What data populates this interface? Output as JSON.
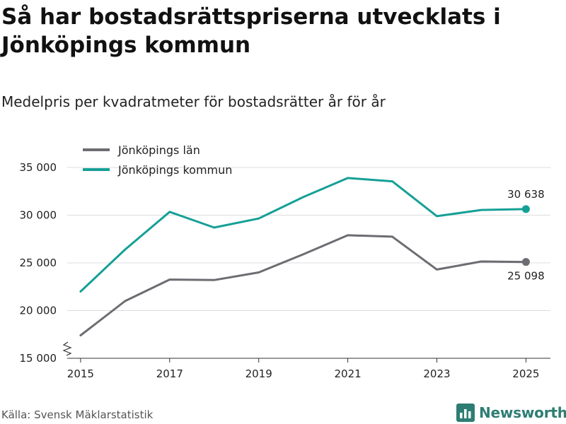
{
  "title": "Så har bostadsrättspriserna utvecklats i Jönköpings kommun",
  "subtitle": "Medelpris per kvadratmeter för bostadsrätter år för år",
  "source": "Källa: Svensk Mäklarstatistik",
  "brand": {
    "name": "Newsworthy",
    "logo_icon": "bar-chart-icon",
    "color": "#2e7d73"
  },
  "chart_data": {
    "type": "line",
    "x": [
      2015,
      2016,
      2017,
      2018,
      2019,
      2020,
      2021,
      2022,
      2023,
      2024,
      2025
    ],
    "x_tick_values": [
      2015,
      2017,
      2019,
      2021,
      2023,
      2025
    ],
    "x_tick_labels": [
      "2015",
      "2017",
      "2019",
      "2021",
      "2023",
      "2025"
    ],
    "xlim": [
      2014.7,
      2025.55
    ],
    "ylim": [
      15000,
      36000
    ],
    "y_tick_values": [
      15000,
      20000,
      25000,
      30000,
      35000
    ],
    "y_tick_labels": [
      "15 000",
      "20 000",
      "25 000",
      "30 000",
      "35 000"
    ],
    "grid": true,
    "axis_break": true,
    "legend_position": "top-left",
    "series": [
      {
        "name": "Jönköpings län",
        "color": "#6d6c72",
        "values": [
          17400,
          21000,
          23250,
          23200,
          24000,
          25900,
          27900,
          27750,
          24300,
          25150,
          25098
        ],
        "end_label": "25 098",
        "end_label_position": "below"
      },
      {
        "name": "Jönköpings kommun",
        "color": "#15a096",
        "values": [
          22000,
          26400,
          30350,
          28700,
          29650,
          31900,
          33900,
          33550,
          29900,
          30550,
          30638
        ],
        "end_label": "30 638",
        "end_label_position": "above"
      }
    ]
  }
}
